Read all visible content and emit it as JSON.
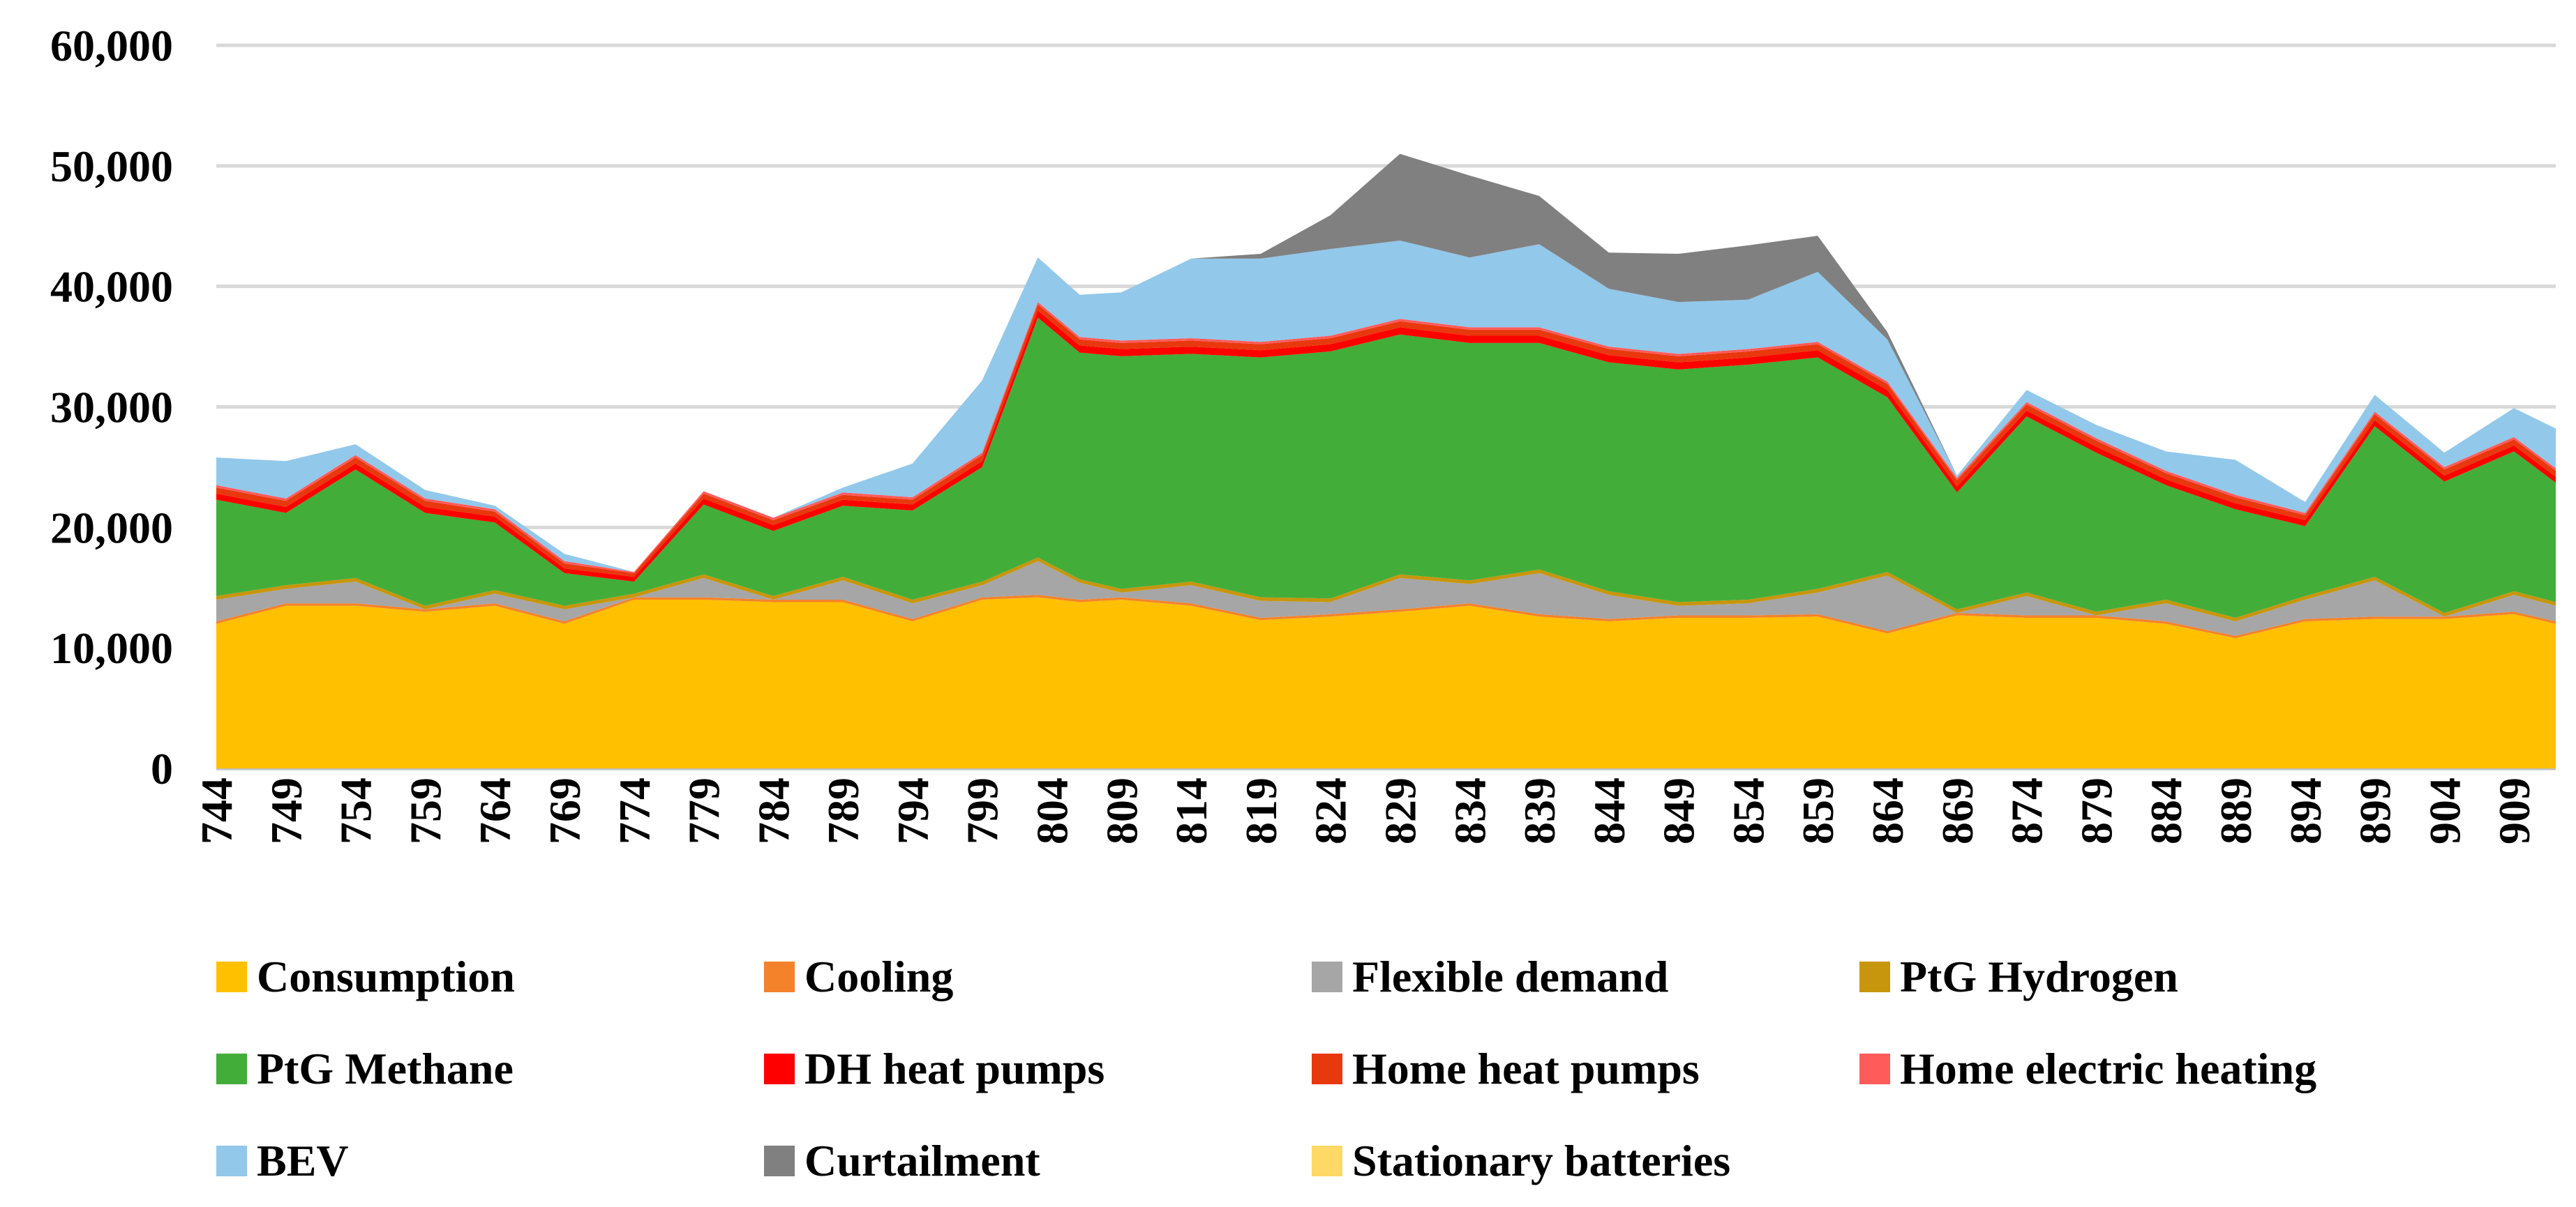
{
  "chart_data": {
    "type": "area",
    "stacked": true,
    "title": "",
    "xlabel": "",
    "ylabel": "",
    "ylim": [
      0,
      60000
    ],
    "y_ticks": [
      "0",
      "10,000",
      "20,000",
      "30,000",
      "40,000",
      "50,000",
      "60,000"
    ],
    "x_start": 744,
    "x_end": 912,
    "x_tick_labels": [
      "744",
      "749",
      "754",
      "759",
      "764",
      "769",
      "774",
      "779",
      "784",
      "789",
      "794",
      "799",
      "804",
      "809",
      "814",
      "819",
      "824",
      "829",
      "834",
      "839",
      "844",
      "849",
      "854",
      "859",
      "864",
      "869",
      "874",
      "879",
      "884",
      "889",
      "894",
      "899",
      "904",
      "909"
    ],
    "grid": "horizontal",
    "legend_position": "bottom",
    "anchor_x": [
      744,
      749,
      754,
      759,
      764,
      769,
      774,
      779,
      784,
      789,
      794,
      799,
      803,
      806,
      809,
      814,
      819,
      824,
      829,
      834,
      839,
      844,
      849,
      854,
      859,
      864,
      869,
      874,
      879,
      884,
      889,
      894,
      899,
      904,
      909,
      912
    ],
    "series": [
      {
        "name": "Consumption",
        "color": "#FFC000",
        "values": [
          12000,
          13500,
          13500,
          13000,
          13500,
          12000,
          14000,
          14000,
          13800,
          13800,
          12200,
          14000,
          14200,
          13800,
          14000,
          13500,
          12300,
          12600,
          13000,
          13500,
          12600,
          12200,
          12500,
          12500,
          12600,
          11200,
          12700,
          12500,
          12500,
          12000,
          10800,
          12200,
          12400,
          12400,
          12800,
          12000
        ]
      },
      {
        "name": "Cooling",
        "color": "#F4822B",
        "values": [
          200,
          200,
          200,
          200,
          200,
          200,
          200,
          200,
          200,
          200,
          200,
          200,
          200,
          200,
          200,
          200,
          200,
          200,
          200,
          200,
          200,
          200,
          200,
          200,
          200,
          200,
          200,
          200,
          200,
          200,
          200,
          200,
          200,
          200,
          200,
          200
        ]
      },
      {
        "name": "Flexible demand",
        "color": "#A6A6A6",
        "values": [
          1800,
          1200,
          1800,
          0,
          800,
          1000,
          0,
          1600,
          0,
          1600,
          1300,
          1000,
          2800,
          1400,
          400,
          1500,
          1400,
          1000,
          2600,
          1600,
          3400,
          2000,
          800,
          1000,
          1800,
          4600,
          0,
          1600,
          0,
          1500,
          1200,
          1600,
          3000,
          0,
          1400,
          1300
        ]
      },
      {
        "name": "PtG Hydrogen",
        "color": "#C8960C",
        "values": [
          300,
          300,
          300,
          300,
          300,
          300,
          300,
          300,
          300,
          300,
          300,
          300,
          300,
          300,
          300,
          300,
          300,
          300,
          300,
          300,
          300,
          300,
          300,
          300,
          300,
          300,
          300,
          300,
          300,
          300,
          300,
          300,
          300,
          300,
          300,
          300
        ]
      },
      {
        "name": "PtG Methane",
        "color": "#43AD3A",
        "values": [
          8000,
          6000,
          9000,
          7700,
          5600,
          2700,
          1000,
          5800,
          5400,
          5900,
          7400,
          9500,
          19900,
          18800,
          19300,
          18900,
          19900,
          20500,
          19900,
          19700,
          18800,
          19000,
          19300,
          19500,
          19200,
          14500,
          9700,
          14600,
          13200,
          9500,
          9000,
          5800,
          12500,
          10900,
          11600,
          9900
        ]
      },
      {
        "name": "DH heat pumps",
        "color": "#FF0000",
        "values": [
          500,
          500,
          500,
          500,
          500,
          400,
          400,
          500,
          500,
          500,
          500,
          500,
          600,
          600,
          600,
          600,
          600,
          600,
          600,
          600,
          600,
          600,
          600,
          600,
          600,
          600,
          500,
          500,
          500,
          500,
          500,
          500,
          500,
          500,
          500,
          500
        ]
      },
      {
        "name": "Home heat pumps",
        "color": "#E8380D",
        "values": [
          500,
          500,
          500,
          500,
          400,
          400,
          300,
          400,
          400,
          400,
          400,
          500,
          500,
          500,
          500,
          500,
          500,
          500,
          500,
          500,
          500,
          500,
          500,
          500,
          500,
          500,
          500,
          500,
          500,
          500,
          500,
          400,
          500,
          500,
          500,
          500
        ]
      },
      {
        "name": "Home electric heating",
        "color": "#FF5B5B",
        "values": [
          200,
          200,
          200,
          200,
          200,
          200,
          100,
          200,
          200,
          200,
          200,
          200,
          200,
          200,
          200,
          200,
          200,
          200,
          200,
          200,
          200,
          200,
          200,
          200,
          200,
          200,
          200,
          200,
          200,
          200,
          200,
          200,
          200,
          200,
          200,
          200
        ]
      },
      {
        "name": "BEV",
        "color": "#92C8EA",
        "values": [
          2300,
          3100,
          900,
          700,
          300,
          600,
          0,
          0,
          0,
          400,
          2800,
          6000,
          3700,
          3500,
          4000,
          6600,
          6900,
          7200,
          6500,
          5800,
          6900,
          4800,
          4300,
          4100,
          5800,
          3500,
          200,
          1000,
          1100,
          1600,
          2900,
          900,
          1400,
          1200,
          2400,
          3300
        ]
      },
      {
        "name": "Curtailment",
        "color": "#808080",
        "values": [
          0,
          0,
          0,
          0,
          0,
          0,
          0,
          0,
          0,
          0,
          0,
          0,
          0,
          0,
          0,
          0,
          400,
          2800,
          7200,
          6800,
          4000,
          3000,
          4000,
          4500,
          3000,
          600,
          0,
          0,
          0,
          0,
          0,
          0,
          0,
          0,
          0,
          0
        ]
      },
      {
        "name": "Stationary batteries",
        "color": "#FFD966",
        "values": [
          0,
          0,
          0,
          0,
          0,
          0,
          0,
          0,
          0,
          0,
          0,
          0,
          0,
          0,
          0,
          0,
          0,
          0,
          0,
          0,
          0,
          0,
          0,
          0,
          0,
          0,
          0,
          0,
          0,
          0,
          0,
          0,
          0,
          0,
          0,
          0
        ]
      }
    ]
  }
}
